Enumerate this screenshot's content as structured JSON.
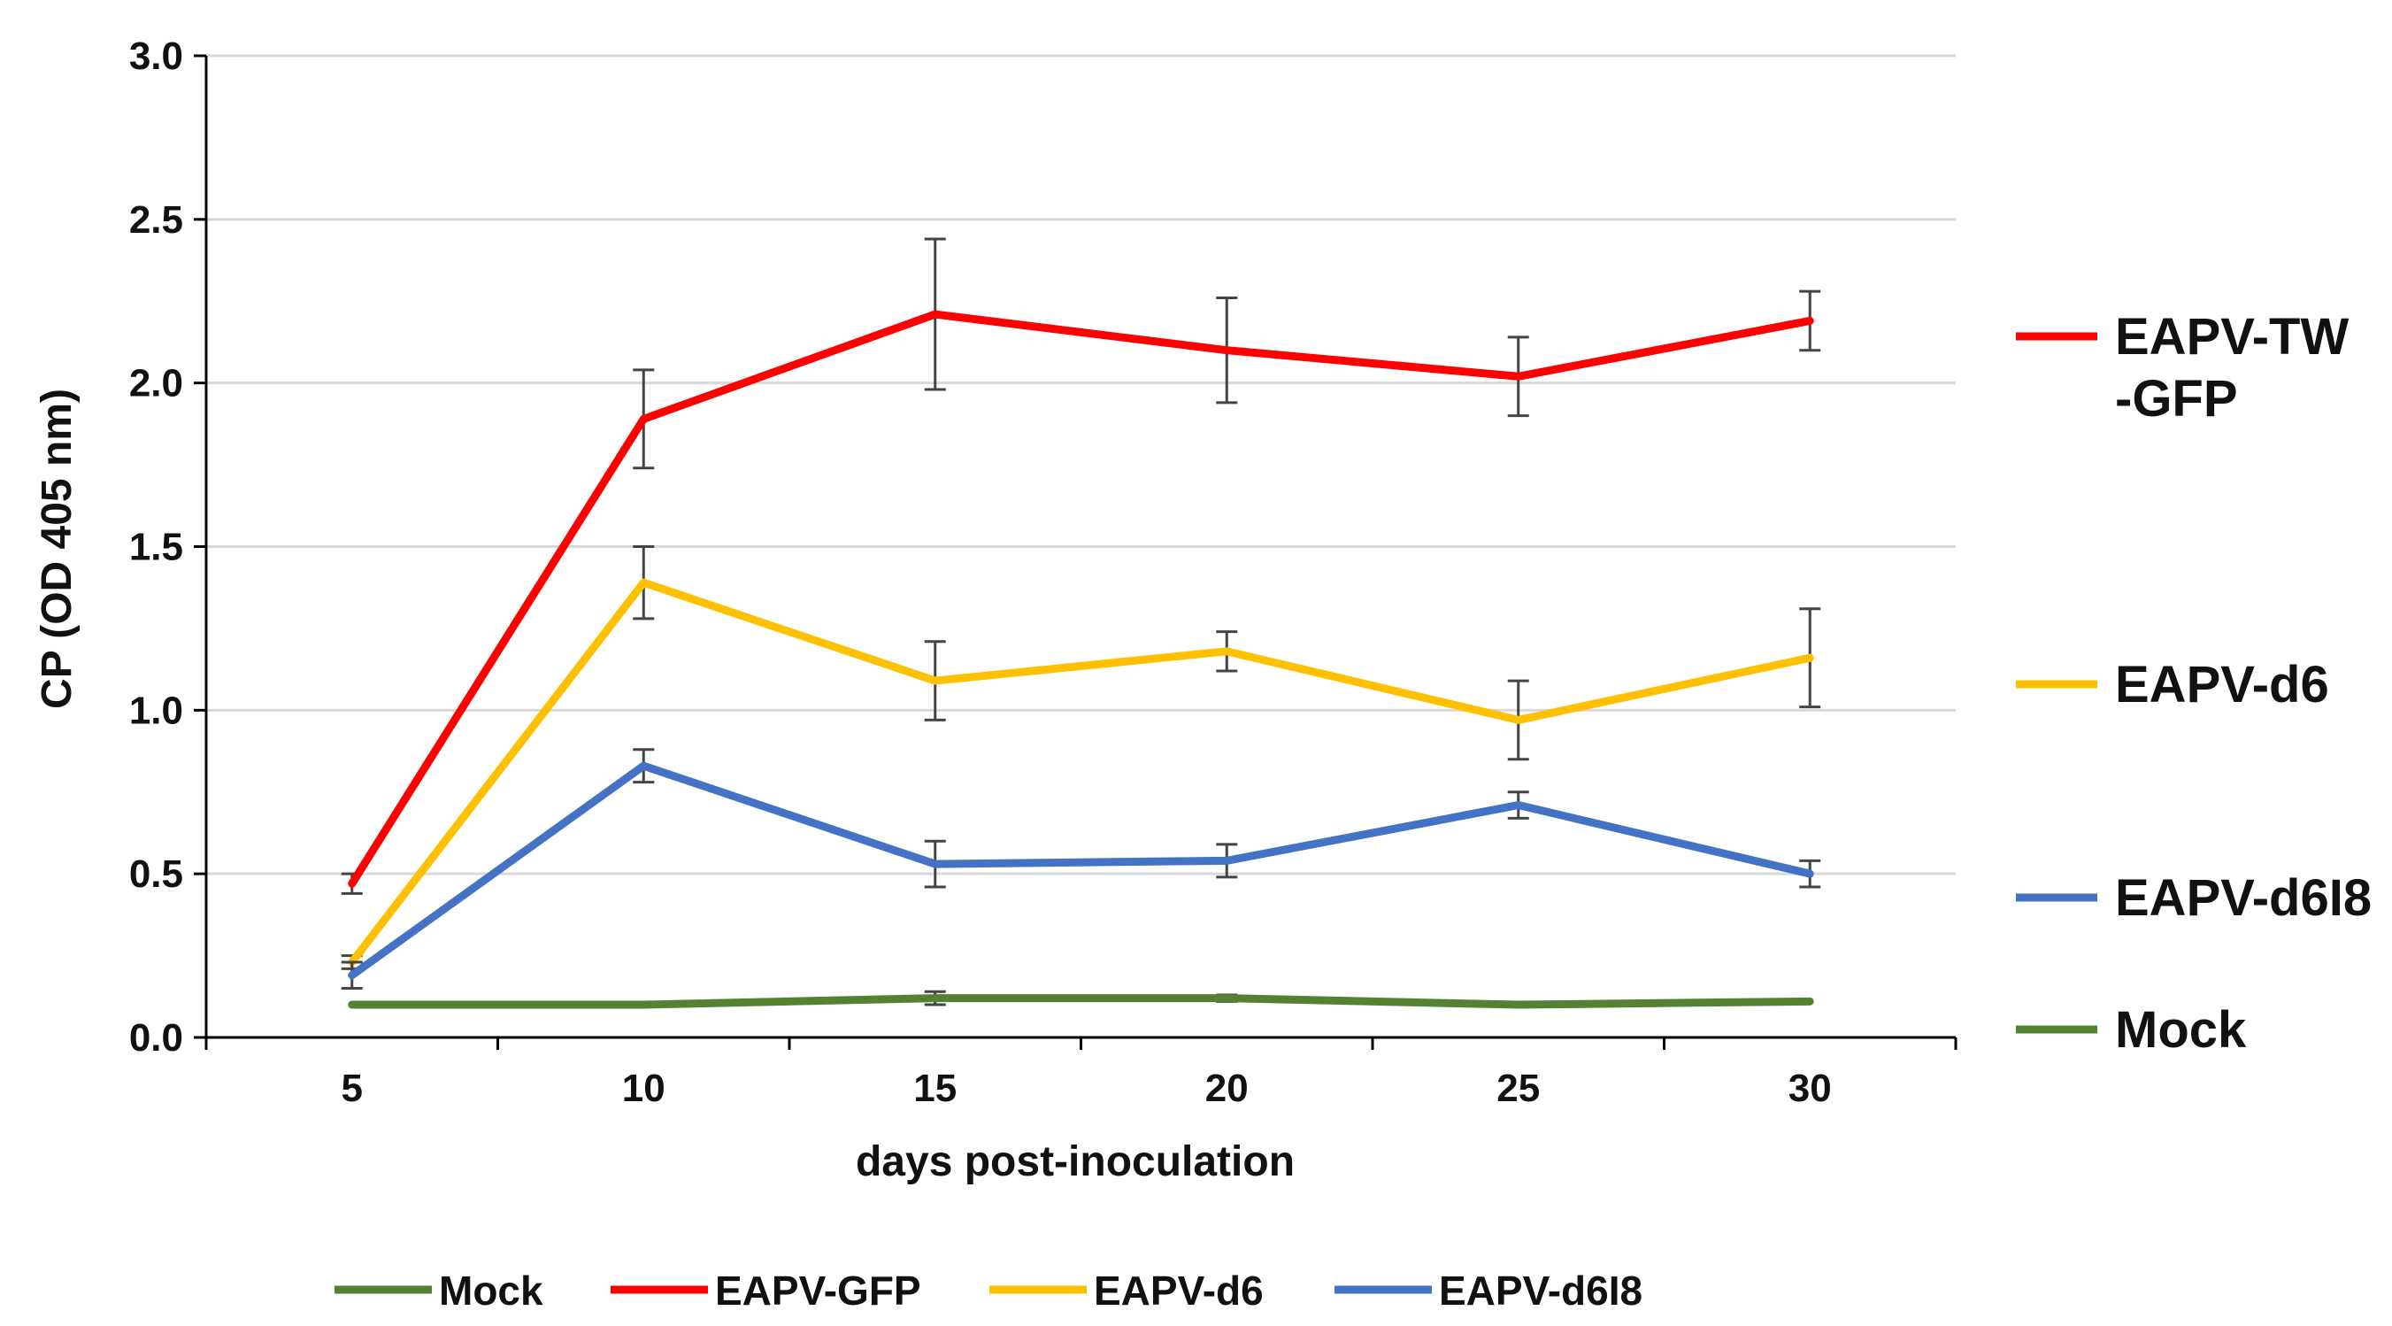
{
  "chart_data": {
    "type": "line",
    "title": "",
    "xlabel": "days post-inoculation",
    "ylabel": "CP (OD 405 nm)",
    "x": [
      5,
      10,
      15,
      20,
      25,
      30
    ],
    "x_tick_labels": [
      "5",
      "10",
      "15",
      "20",
      "25",
      "30"
    ],
    "ylim": [
      0,
      3
    ],
    "y_ticks": [
      0,
      0.5,
      1,
      1.5,
      2,
      2.5,
      3
    ],
    "y_tick_labels": [
      "0.0",
      "0.5",
      "1.0",
      "1.5",
      "2.0",
      "2.5",
      "3.0"
    ],
    "grid": true,
    "series": [
      {
        "name": "Mock",
        "color": "#548235",
        "values": [
          0.1,
          0.1,
          0.12,
          0.12,
          0.1,
          0.11
        ],
        "errors": [
          0.0,
          0.0,
          0.02,
          0.01,
          0.0,
          0.0
        ]
      },
      {
        "name": "EAPV-GFP",
        "color": "#ff0000",
        "values": [
          0.47,
          1.89,
          2.21,
          2.1,
          2.02,
          2.19
        ],
        "errors": [
          0.03,
          0.15,
          0.23,
          0.16,
          0.12,
          0.09
        ]
      },
      {
        "name": "EAPV-d6",
        "color": "#ffc000",
        "values": [
          0.23,
          1.39,
          1.09,
          1.18,
          0.97,
          1.16
        ],
        "errors": [
          0.02,
          0.11,
          0.12,
          0.06,
          0.12,
          0.15
        ]
      },
      {
        "name": "EAPV-d6I8",
        "color": "#4472c4",
        "values": [
          0.19,
          0.83,
          0.53,
          0.54,
          0.71,
          0.5
        ],
        "errors": [
          0.04,
          0.05,
          0.07,
          0.05,
          0.04,
          0.04
        ]
      }
    ],
    "side_labels": [
      {
        "series": "EAPV-GFP",
        "lines": [
          "EAPV-TW",
          "-GFP"
        ]
      },
      {
        "series": "EAPV-d6",
        "lines": [
          "EAPV-d6"
        ]
      },
      {
        "series": "EAPV-d6I8",
        "lines": [
          "EAPV-d6I8"
        ]
      },
      {
        "series": "Mock",
        "lines": [
          "Mock"
        ]
      }
    ],
    "legend": {
      "position": "bottom",
      "entries": [
        "Mock",
        "EAPV-GFP",
        "EAPV-d6",
        "EAPV-d6I8"
      ]
    }
  }
}
